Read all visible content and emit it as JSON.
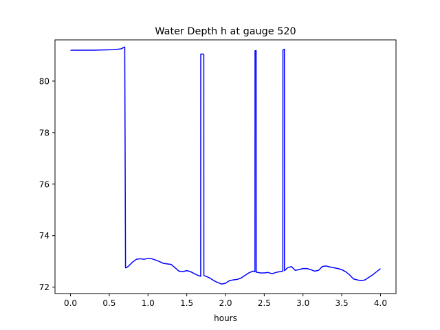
{
  "chart_data": {
    "type": "line",
    "title": "Water Depth h at gauge 520",
    "xlabel": "hours",
    "ylabel": "",
    "xlim": [
      -0.2,
      4.2
    ],
    "ylim": [
      71.75,
      81.6
    ],
    "xticks": [
      0.0,
      0.5,
      1.0,
      1.5,
      2.0,
      2.5,
      3.0,
      3.5,
      4.0
    ],
    "xtick_labels": [
      "0.0",
      "0.5",
      "1.0",
      "1.5",
      "2.0",
      "2.5",
      "3.0",
      "3.5",
      "4.0"
    ],
    "yticks": [
      72,
      74,
      76,
      78,
      80
    ],
    "ytick_labels": [
      "72",
      "74",
      "76",
      "78",
      "80"
    ],
    "grid": false,
    "legend": "none",
    "series": [
      {
        "color": "#0000ff",
        "x": [
          0.0,
          0.3,
          0.55,
          0.65,
          0.7,
          0.71,
          0.72,
          0.75,
          0.8,
          0.85,
          0.9,
          0.95,
          1.0,
          1.05,
          1.1,
          1.15,
          1.2,
          1.25,
          1.3,
          1.35,
          1.4,
          1.45,
          1.5,
          1.55,
          1.6,
          1.65,
          1.68,
          1.681,
          1.71,
          1.72,
          1.721,
          1.75,
          1.8,
          1.85,
          1.9,
          1.95,
          2.0,
          2.05,
          2.1,
          2.15,
          2.2,
          2.25,
          2.3,
          2.35,
          2.38,
          2.381,
          2.395,
          2.396,
          2.4,
          2.45,
          2.5,
          2.55,
          2.6,
          2.65,
          2.7,
          2.74,
          2.741,
          2.75,
          2.76,
          2.761,
          2.8,
          2.85,
          2.9,
          2.95,
          3.0,
          3.05,
          3.1,
          3.15,
          3.2,
          3.25,
          3.3,
          3.35,
          3.4,
          3.45,
          3.5,
          3.55,
          3.6,
          3.65,
          3.7,
          3.75,
          3.8,
          3.85,
          3.9,
          3.95,
          4.0
        ],
        "y": [
          81.2,
          81.2,
          81.22,
          81.25,
          81.32,
          72.75,
          72.75,
          72.82,
          72.97,
          73.08,
          73.1,
          73.08,
          73.12,
          73.1,
          73.05,
          72.99,
          72.92,
          72.9,
          72.88,
          72.75,
          72.62,
          72.6,
          72.64,
          72.6,
          72.52,
          72.45,
          72.42,
          81.05,
          81.05,
          81.03,
          72.45,
          72.42,
          72.35,
          72.25,
          72.18,
          72.12,
          72.15,
          72.25,
          72.28,
          72.3,
          72.35,
          72.45,
          72.55,
          72.62,
          72.6,
          81.18,
          81.18,
          72.58,
          72.58,
          72.55,
          72.55,
          72.57,
          72.52,
          72.57,
          72.6,
          72.62,
          81.2,
          81.22,
          81.24,
          72.64,
          72.75,
          72.8,
          72.65,
          72.68,
          72.72,
          72.72,
          72.68,
          72.62,
          72.65,
          72.8,
          72.82,
          72.78,
          72.75,
          72.72,
          72.68,
          72.6,
          72.48,
          72.32,
          72.28,
          72.25,
          72.28,
          72.38,
          72.48,
          72.6,
          72.72
        ]
      }
    ]
  }
}
